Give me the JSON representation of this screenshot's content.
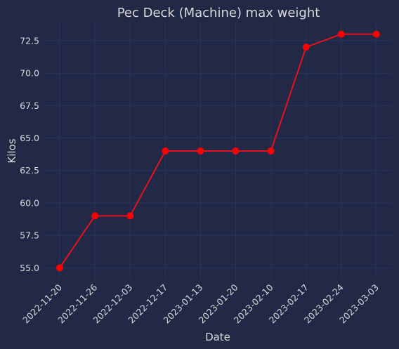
{
  "chart_data": {
    "type": "line",
    "title": "Pec Deck (Machine) max weight",
    "xlabel": "Date",
    "ylabel": "Kilos",
    "categories": [
      "2022-11-20",
      "2022-11-26",
      "2022-12-03",
      "2022-12-17",
      "2023-01-13",
      "2023-01-20",
      "2023-02-10",
      "2023-02-17",
      "2023-02-24",
      "2023-03-03"
    ],
    "series": [
      {
        "name": "max weight",
        "values": [
          55,
          59,
          59,
          64,
          64,
          64,
          64,
          72,
          73,
          73
        ]
      }
    ],
    "ylim": [
      54.1,
      73.9
    ],
    "yticks": [
      55.0,
      57.5,
      60.0,
      62.5,
      65.0,
      67.5,
      70.0,
      72.5
    ],
    "ytick_labels": [
      "55.0",
      "57.5",
      "60.0",
      "62.5",
      "65.0",
      "67.5",
      "70.0",
      "72.5"
    ],
    "grid": true,
    "colors": {
      "background": "#212946",
      "grid": "#2A3459",
      "text": "#D9D9D9",
      "line": "#E8101A",
      "marker": "#FF0000"
    }
  }
}
